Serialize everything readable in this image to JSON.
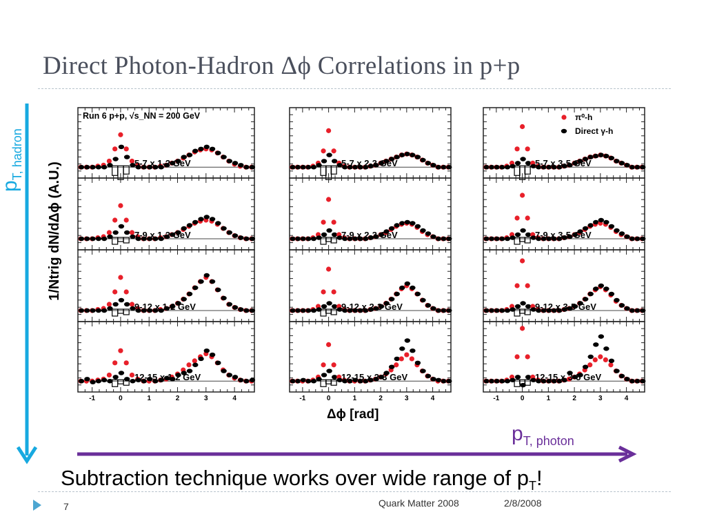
{
  "slide": {
    "title": "Direct Photon-Hadron Δϕ Correlations in p+p",
    "pt_hadron_main": "p",
    "pt_hadron_sub": "T, hadron",
    "pt_photon_main": "p",
    "pt_photon_sub": "T, photon",
    "ylabel": "1/Ntrig dN/dΔϕ (A.U.)",
    "xlabel": "Δϕ [rad]",
    "conclusion_main": "Subtraction technique works over wide range of p",
    "conclusion_sub": "T",
    "conclusion_end": "!",
    "page_number": "7",
    "footer_event": "Quark Matter 2008",
    "footer_date": "2/8/2008",
    "colors": {
      "title": "#4a4f5c",
      "pt_hadron": "#17a9e0",
      "pt_photon": "#6a2f9a",
      "pi0": "#e8202a",
      "direct": "#000000"
    }
  },
  "chart_data": {
    "type": "scatter",
    "header": "Run 6 p+p, √s_NN = 200 GeV",
    "legend": {
      "placement": "top-right",
      "entries": [
        "π⁰-h",
        "Direct γ-h"
      ]
    },
    "x_ticks": [
      "-1",
      "0",
      "1",
      "2",
      "3",
      "4"
    ],
    "xlim": [
      -1.5,
      4.7
    ],
    "x": [
      -1.4,
      -1.2,
      -1.0,
      -0.8,
      -0.6,
      -0.4,
      -0.2,
      0.0,
      0.2,
      0.4,
      0.6,
      0.8,
      1.0,
      1.2,
      1.4,
      1.6,
      1.8,
      2.0,
      2.2,
      2.4,
      2.6,
      2.8,
      3.0,
      3.2,
      3.4,
      3.6,
      3.8,
      4.0,
      4.2,
      4.4,
      4.6
    ],
    "panels": [
      {
        "label": "5-7 x 1-2 GeV",
        "pi0": [
          1.0,
          1.0,
          1.0,
          1.05,
          1.1,
          1.3,
          1.9,
          2.6,
          1.9,
          1.3,
          1.1,
          1.0,
          1.0,
          1.0,
          1.05,
          1.1,
          1.2,
          1.3,
          1.45,
          1.6,
          1.75,
          1.85,
          1.9,
          1.85,
          1.7,
          1.5,
          1.3,
          1.15,
          1.05,
          1.0,
          1.0
        ],
        "direct": [
          1.0,
          1.0,
          1.0,
          1.0,
          1.0,
          1.1,
          1.4,
          2.0,
          1.5,
          1.1,
          1.0,
          1.0,
          1.0,
          1.0,
          1.0,
          1.1,
          1.2,
          1.3,
          1.5,
          1.6,
          1.8,
          1.9,
          2.0,
          1.9,
          1.7,
          1.5,
          1.3,
          1.2,
          1.1,
          1.0,
          1.0
        ]
      },
      {
        "label": "5-7 x 2-3 GeV",
        "pi0": [
          1.0,
          1.0,
          1.0,
          1.0,
          1.05,
          1.2,
          1.8,
          2.8,
          1.8,
          1.2,
          1.05,
          1.0,
          1.0,
          1.0,
          1.0,
          1.05,
          1.1,
          1.2,
          1.3,
          1.4,
          1.5,
          1.6,
          1.65,
          1.6,
          1.5,
          1.35,
          1.2,
          1.1,
          1.0,
          1.0,
          1.0
        ],
        "direct": [
          1.0,
          1.0,
          1.0,
          1.0,
          1.0,
          1.1,
          1.3,
          1.6,
          1.3,
          1.1,
          1.0,
          1.0,
          1.0,
          1.0,
          1.0,
          1.05,
          1.1,
          1.2,
          1.3,
          1.4,
          1.5,
          1.6,
          1.65,
          1.6,
          1.5,
          1.35,
          1.2,
          1.1,
          1.0,
          1.0,
          1.0
        ]
      },
      {
        "label": "5-7 x 3-5 GeV",
        "pi0": [
          1.0,
          1.0,
          1.0,
          1.0,
          1.05,
          1.2,
          1.9,
          3.0,
          1.9,
          1.2,
          1.05,
          1.0,
          1.0,
          1.0,
          1.0,
          1.05,
          1.1,
          1.2,
          1.3,
          1.4,
          1.5,
          1.55,
          1.6,
          1.55,
          1.45,
          1.3,
          1.2,
          1.1,
          1.0,
          1.0,
          1.0
        ],
        "direct": [
          1.0,
          1.0,
          1.0,
          1.0,
          1.0,
          1.05,
          1.2,
          1.4,
          1.2,
          1.05,
          1.0,
          1.0,
          1.0,
          1.0,
          1.0,
          1.05,
          1.1,
          1.2,
          1.3,
          1.4,
          1.5,
          1.55,
          1.6,
          1.55,
          1.45,
          1.3,
          1.2,
          1.1,
          1.0,
          1.0,
          1.0
        ]
      },
      {
        "label": "7-9 x 1-2 GeV",
        "pi0": [
          1.0,
          1.0,
          1.0,
          1.05,
          1.1,
          1.3,
          1.9,
          2.6,
          1.9,
          1.3,
          1.1,
          1.0,
          1.0,
          1.0,
          1.05,
          1.1,
          1.2,
          1.3,
          1.45,
          1.6,
          1.75,
          1.85,
          1.9,
          1.85,
          1.7,
          1.5,
          1.3,
          1.15,
          1.05,
          1.0,
          1.0
        ],
        "direct": [
          1.0,
          1.0,
          1.0,
          1.0,
          1.0,
          1.1,
          1.3,
          1.6,
          1.3,
          1.1,
          1.0,
          1.0,
          1.0,
          1.0,
          1.0,
          1.1,
          1.2,
          1.3,
          1.5,
          1.65,
          1.8,
          1.95,
          2.05,
          1.95,
          1.75,
          1.5,
          1.3,
          1.15,
          1.05,
          1.0,
          1.0
        ]
      },
      {
        "label": "7-9 x 2-3 GeV",
        "pi0": [
          1.0,
          1.0,
          1.0,
          1.0,
          1.05,
          1.2,
          1.8,
          2.9,
          1.8,
          1.2,
          1.05,
          1.0,
          1.0,
          1.0,
          1.0,
          1.05,
          1.1,
          1.2,
          1.3,
          1.45,
          1.6,
          1.7,
          1.75,
          1.7,
          1.55,
          1.35,
          1.2,
          1.1,
          1.0,
          1.0,
          1.0
        ],
        "direct": [
          1.0,
          1.0,
          1.0,
          1.0,
          1.0,
          1.05,
          1.2,
          1.4,
          1.2,
          1.05,
          1.0,
          1.0,
          1.0,
          1.0,
          1.0,
          1.05,
          1.1,
          1.2,
          1.35,
          1.5,
          1.65,
          1.75,
          1.8,
          1.75,
          1.6,
          1.4,
          1.25,
          1.1,
          1.0,
          1.0,
          1.0
        ]
      },
      {
        "label": "7-9 x 3-5 GeV",
        "pi0": [
          1.0,
          1.0,
          1.0,
          1.0,
          1.05,
          1.2,
          2.0,
          3.1,
          2.0,
          1.2,
          1.05,
          1.0,
          1.0,
          1.0,
          1.0,
          1.05,
          1.1,
          1.2,
          1.3,
          1.45,
          1.6,
          1.7,
          1.75,
          1.7,
          1.55,
          1.35,
          1.2,
          1.1,
          1.0,
          1.0,
          1.0
        ],
        "direct": [
          1.0,
          1.0,
          1.0,
          1.0,
          1.0,
          1.05,
          1.2,
          1.4,
          1.2,
          1.05,
          1.0,
          1.0,
          1.0,
          1.0,
          1.0,
          1.05,
          1.1,
          1.2,
          1.35,
          1.5,
          1.65,
          1.8,
          1.9,
          1.8,
          1.6,
          1.4,
          1.25,
          1.1,
          1.0,
          1.0,
          1.0
        ]
      },
      {
        "label": "9-12 x 1-2 GeV",
        "pi0": [
          1.0,
          1.0,
          1.0,
          1.05,
          1.1,
          1.3,
          1.9,
          2.6,
          1.9,
          1.3,
          1.1,
          1.0,
          1.0,
          1.0,
          1.05,
          1.1,
          1.2,
          1.35,
          1.55,
          1.8,
          2.1,
          2.4,
          2.6,
          2.4,
          2.0,
          1.6,
          1.3,
          1.15,
          1.05,
          1.0,
          1.0
        ],
        "direct": [
          1.0,
          1.0,
          1.0,
          1.0,
          1.0,
          1.1,
          1.3,
          1.5,
          1.3,
          1.1,
          1.0,
          1.0,
          1.0,
          1.0,
          1.0,
          1.1,
          1.2,
          1.35,
          1.55,
          1.8,
          2.1,
          2.4,
          2.7,
          2.4,
          2.0,
          1.6,
          1.3,
          1.15,
          1.05,
          1.0,
          1.0
        ]
      },
      {
        "label": "9-12 x 2-3 GeV",
        "pi0": [
          1.0,
          1.0,
          1.0,
          1.0,
          1.05,
          1.2,
          1.9,
          3.0,
          1.9,
          1.2,
          1.05,
          1.0,
          1.0,
          1.0,
          1.0,
          1.05,
          1.1,
          1.2,
          1.35,
          1.55,
          1.8,
          2.05,
          2.2,
          2.05,
          1.8,
          1.5,
          1.25,
          1.1,
          1.0,
          1.0,
          1.0
        ],
        "direct": [
          1.0,
          1.0,
          1.0,
          1.0,
          1.0,
          1.05,
          1.2,
          1.35,
          1.2,
          1.05,
          1.0,
          1.0,
          1.0,
          1.0,
          1.0,
          1.05,
          1.1,
          1.2,
          1.35,
          1.55,
          1.8,
          2.1,
          2.3,
          2.1,
          1.8,
          1.5,
          1.25,
          1.1,
          1.0,
          1.0,
          1.0
        ]
      },
      {
        "label": "9-12 x 3-5 GeV",
        "pi0": [
          1.0,
          1.0,
          1.0,
          1.0,
          1.05,
          1.2,
          2.2,
          3.4,
          2.2,
          1.2,
          1.05,
          1.0,
          1.0,
          1.0,
          1.0,
          1.05,
          1.1,
          1.2,
          1.35,
          1.55,
          1.8,
          2.0,
          2.15,
          2.0,
          1.75,
          1.45,
          1.25,
          1.1,
          1.0,
          1.0,
          1.0
        ],
        "direct": [
          1.0,
          1.0,
          1.0,
          1.0,
          1.0,
          1.05,
          1.2,
          1.35,
          1.2,
          1.05,
          1.0,
          1.0,
          1.0,
          1.0,
          1.0,
          1.05,
          1.1,
          1.2,
          1.35,
          1.55,
          1.8,
          2.05,
          2.2,
          2.05,
          1.8,
          1.5,
          1.25,
          1.1,
          1.0,
          1.0,
          1.0
        ]
      },
      {
        "label": "12-15 x 1-2 GeV",
        "pi0": [
          1.0,
          1.0,
          1.0,
          1.05,
          1.1,
          1.3,
          1.9,
          2.5,
          1.9,
          1.3,
          1.1,
          1.0,
          1.0,
          1.0,
          1.05,
          1.1,
          1.2,
          1.35,
          1.55,
          1.8,
          2.0,
          2.2,
          2.35,
          2.2,
          1.9,
          1.55,
          1.3,
          1.15,
          1.05,
          1.0,
          1.0
        ],
        "direct": [
          1.0,
          1.1,
          0.95,
          1.0,
          1.05,
          1.0,
          1.2,
          1.4,
          1.1,
          1.0,
          1.05,
          1.0,
          1.1,
          1.0,
          1.05,
          1.15,
          1.1,
          1.3,
          1.4,
          1.5,
          1.8,
          2.1,
          2.5,
          2.3,
          1.9,
          1.5,
          1.3,
          1.2,
          1.05,
          1.0,
          1.05
        ]
      },
      {
        "label": "12-15 x 2-3 GeV",
        "pi0": [
          1.0,
          1.0,
          1.0,
          1.0,
          1.05,
          1.2,
          1.8,
          2.8,
          1.8,
          1.2,
          1.05,
          1.0,
          1.0,
          1.0,
          1.0,
          1.05,
          1.1,
          1.2,
          1.35,
          1.55,
          1.8,
          2.1,
          2.3,
          2.1,
          1.8,
          1.5,
          1.25,
          1.1,
          1.0,
          1.0,
          1.0
        ],
        "direct": [
          1.0,
          1.0,
          1.05,
          1.0,
          1.0,
          1.1,
          1.3,
          1.5,
          1.2,
          1.05,
          1.0,
          1.0,
          1.05,
          1.0,
          1.0,
          1.05,
          1.1,
          1.2,
          1.4,
          1.7,
          2.1,
          2.6,
          3.0,
          2.5,
          1.9,
          1.5,
          1.25,
          1.1,
          1.05,
          1.0,
          1.0
        ]
      },
      {
        "label": "12-15 x 3-5 GeV",
        "pi0": [
          1.0,
          1.0,
          1.0,
          1.0,
          1.05,
          1.2,
          2.2,
          3.6,
          2.2,
          1.2,
          1.05,
          1.0,
          1.0,
          1.0,
          1.0,
          1.05,
          1.1,
          1.2,
          1.35,
          1.55,
          1.8,
          2.05,
          2.2,
          2.05,
          1.8,
          1.5,
          1.25,
          1.1,
          1.0,
          1.0,
          1.0
        ],
        "direct": [
          1.0,
          1.0,
          1.0,
          1.0,
          1.0,
          1.05,
          1.2,
          0.8,
          1.2,
          1.05,
          1.0,
          1.0,
          1.0,
          1.0,
          1.0,
          1.05,
          1.4,
          1.2,
          1.3,
          1.7,
          2.2,
          2.8,
          3.2,
          2.6,
          2.0,
          1.5,
          1.25,
          1.1,
          1.0,
          1.0,
          1.0
        ]
      }
    ]
  }
}
